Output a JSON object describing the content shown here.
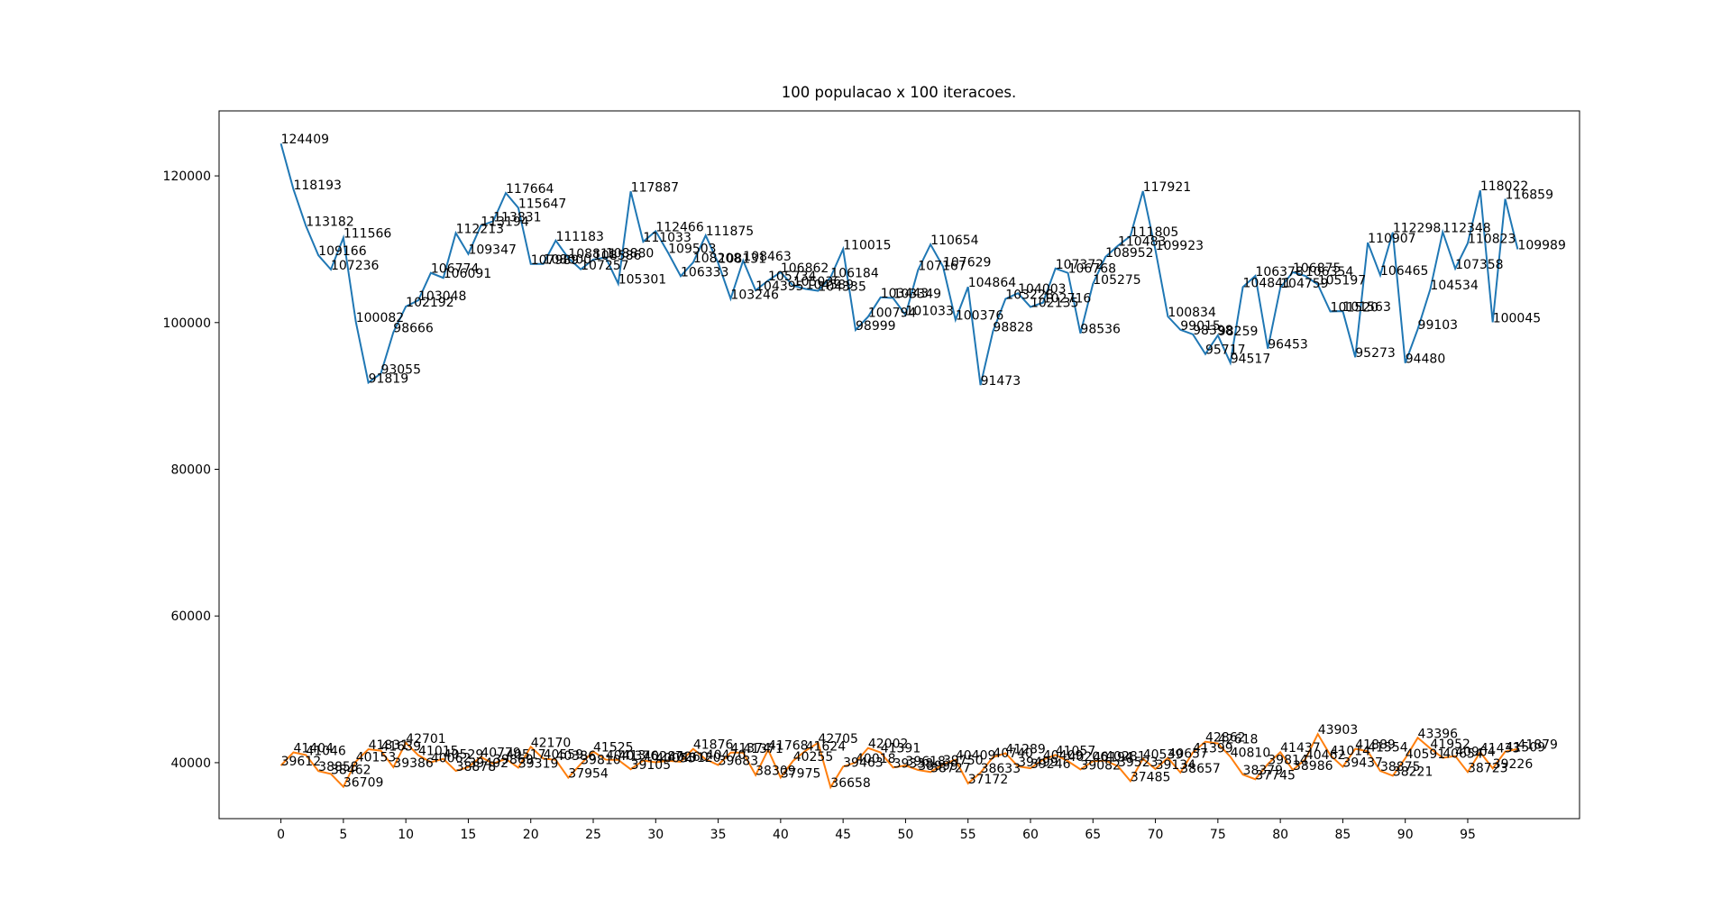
{
  "chart_data": {
    "type": "line",
    "title": "100 populacao x 100 iteracoes.",
    "x": [
      0,
      1,
      2,
      3,
      4,
      5,
      6,
      7,
      8,
      9,
      10,
      11,
      12,
      13,
      14,
      15,
      16,
      17,
      18,
      19,
      20,
      21,
      22,
      23,
      24,
      25,
      26,
      27,
      28,
      29,
      30,
      31,
      32,
      33,
      34,
      35,
      36,
      37,
      38,
      39,
      40,
      41,
      42,
      43,
      44,
      45,
      46,
      47,
      48,
      49,
      50,
      51,
      52,
      53,
      54,
      55,
      56,
      57,
      58,
      59,
      60,
      61,
      62,
      63,
      64,
      65,
      66,
      67,
      68,
      69,
      70,
      71,
      72,
      73,
      74,
      75,
      76,
      77,
      78,
      79,
      80,
      81,
      82,
      83,
      84,
      85,
      86,
      87,
      88,
      89,
      90,
      91,
      92,
      93,
      94,
      95,
      96,
      97,
      98,
      99
    ],
    "series": [
      {
        "color": "#1f77b4",
        "values": [
          124409,
          118193,
          113182,
          109166,
          107236,
          111566,
          100082,
          91819,
          93055,
          98666,
          102192,
          103048,
          106774,
          106091,
          112213,
          109347,
          113194,
          113831,
          117664,
          115647,
          107989,
          108000,
          111183,
          108811,
          107257,
          108586,
          108880,
          105301,
          117887,
          111033,
          112466,
          109503,
          106333,
          108208,
          111875,
          108131,
          103246,
          108463,
          104395,
          105734,
          106862,
          105036,
          104589,
          104335,
          106184,
          110015,
          98999,
          100794,
          103443,
          103349,
          101033,
          107167,
          110654,
          107629,
          100376,
          104864,
          91473,
          98828,
          103228,
          104003,
          102135,
          102716,
          107372,
          106768,
          98536,
          105275,
          108952,
          110483,
          111805,
          117921,
          109923,
          100834,
          99015,
          98398,
          95717,
          98259,
          94517,
          104841,
          106378,
          96453,
          104759,
          106875,
          106354,
          105197,
          101520,
          101563,
          95273,
          110907,
          106465,
          112298,
          94480,
          99103,
          104534,
          112348,
          107358,
          110823,
          118022,
          100045,
          116859,
          109989
        ]
      },
      {
        "color": "#ff7f0e",
        "values": [
          39612,
          41404,
          41046,
          38858,
          38462,
          36709,
          40153,
          41831,
          41639,
          39386,
          42701,
          41015,
          40062,
          40529,
          38878,
          39402,
          40779,
          39869,
          40517,
          39319,
          42170,
          40559,
          40386,
          37954,
          39810,
          41525,
          40413,
          40376,
          39105,
          40287,
          40055,
          40260,
          40120,
          41876,
          40470,
          39683,
          41374,
          41371,
          38309,
          41768,
          37975,
          40255,
          41624,
          42705,
          36658,
          39463,
          40018,
          42002,
          41391,
          39338,
          39618,
          38999,
          38727,
          39750,
          40409,
          37172,
          38633,
          40740,
          41289,
          39499,
          39246,
          40409,
          41057,
          40206,
          39082,
          40194,
          40281,
          39523,
          37485,
          40539,
          39134,
          40657,
          38657,
          41399,
          42862,
          42618,
          40810,
          38379,
          37745,
          39814,
          41437,
          38986,
          40462,
          43903,
          41014,
          39437,
          41889,
          41554,
          38875,
          38221,
          40591,
          43396,
          41952,
          40654,
          40904,
          38723,
          41433,
          39226,
          41509,
          41879
        ]
      }
    ],
    "xlim": [
      -4.95,
      103.95
    ],
    "ylim": [
      32370,
      128860
    ],
    "xticks": [
      0,
      5,
      10,
      15,
      20,
      25,
      30,
      35,
      40,
      45,
      50,
      55,
      60,
      65,
      70,
      75,
      80,
      85,
      90,
      95
    ],
    "yticks": [
      40000,
      60000,
      80000,
      100000,
      120000
    ],
    "grid": false
  }
}
